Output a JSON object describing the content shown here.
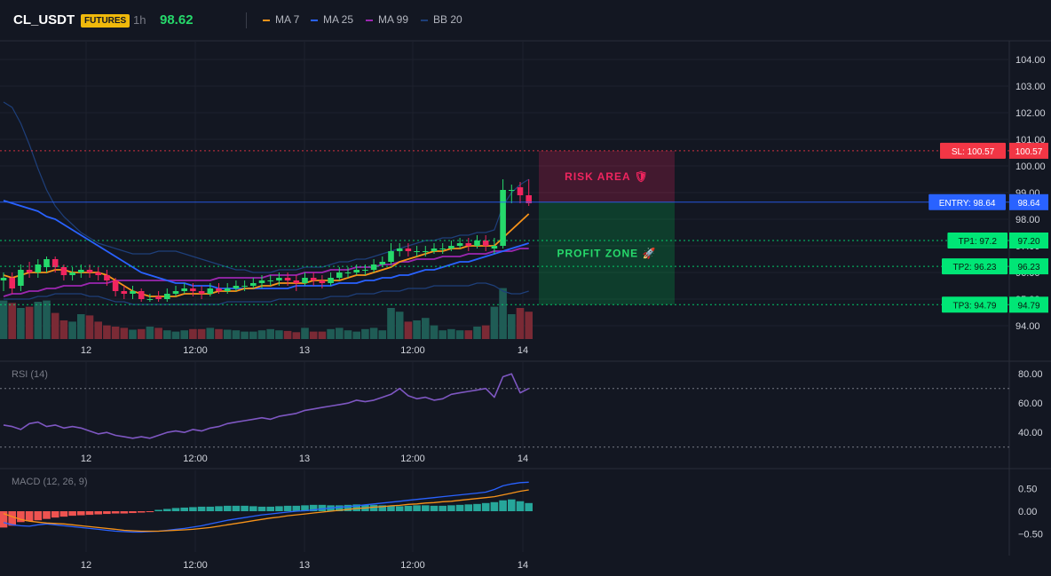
{
  "header": {
    "symbol": "CL_USDT",
    "badge": "FUTURES",
    "timeframe": "1h",
    "last_price": "98.62",
    "legend": [
      {
        "label": "MA 7",
        "color": "#f7931a"
      },
      {
        "label": "MA 25",
        "color": "#2962ff"
      },
      {
        "label": "MA 99",
        "color": "#9c27b0"
      },
      {
        "label": "BB 20",
        "color": "#1e3f7a"
      }
    ]
  },
  "colors": {
    "up": "#26a69a",
    "up_bright": "#26d96b",
    "down": "#ef5350",
    "down_bright": "#f0255f",
    "vol_up": "#1f5c55",
    "vol_down": "#7a2a35",
    "rsi": "#7e57c2",
    "macd": "#2962ff",
    "signal": "#f7931a",
    "hist_up": "#26a69a",
    "hist_down": "#ef5350"
  },
  "chart_data": [
    {
      "type": "candlestick",
      "title": "CL_USDT",
      "ylim": [
        93.5,
        104.7
      ],
      "y_ticks": [
        "104.00",
        "103.00",
        "102.00",
        "101.00",
        "100.00",
        "99.00",
        "98.00",
        "97.00",
        "96.00",
        "95.00",
        "94.00"
      ],
      "x_ticks": [
        "12",
        "12:00",
        "13",
        "12:00",
        "14"
      ],
      "close": [
        95.8,
        95.4,
        96.1,
        96.0,
        96.3,
        96.5,
        96.2,
        95.9,
        96.0,
        96.1,
        96.0,
        95.9,
        95.7,
        95.3,
        95.2,
        95.3,
        95.0,
        95.0,
        95.0,
        95.2,
        95.3,
        95.4,
        95.3,
        95.2,
        95.4,
        95.3,
        95.4,
        95.5,
        95.5,
        95.6,
        95.7,
        95.7,
        95.8,
        95.7,
        95.6,
        95.8,
        95.7,
        95.6,
        95.8,
        96.0,
        96.0,
        96.1,
        96.1,
        96.3,
        96.4,
        96.8,
        96.9,
        96.8,
        96.8,
        96.8,
        96.9,
        96.9,
        97.0,
        97.1,
        97.0,
        97.2,
        97.0,
        97.0,
        99.1,
        99.1,
        98.9,
        98.6
      ],
      "open": [
        95.7,
        95.8,
        95.5,
        96.1,
        96.0,
        96.2,
        96.5,
        96.2,
        95.9,
        96.0,
        96.1,
        96.0,
        95.9,
        95.7,
        95.3,
        95.2,
        95.3,
        95.0,
        95.1,
        95.0,
        95.2,
        95.3,
        95.4,
        95.3,
        95.2,
        95.4,
        95.3,
        95.4,
        95.5,
        95.5,
        95.6,
        95.7,
        95.7,
        95.8,
        95.7,
        95.6,
        95.8,
        95.7,
        95.6,
        95.8,
        96.0,
        96.0,
        96.1,
        96.1,
        96.3,
        96.4,
        96.8,
        96.9,
        96.8,
        96.8,
        96.8,
        96.9,
        96.9,
        97.0,
        97.1,
        97.0,
        97.2,
        96.9,
        97.0,
        99.1,
        99.2,
        98.9
      ],
      "high": [
        96.0,
        96.0,
        96.3,
        96.4,
        96.5,
        96.6,
        96.6,
        96.3,
        96.2,
        96.3,
        96.3,
        96.2,
        96.1,
        95.8,
        95.5,
        95.5,
        95.4,
        95.2,
        95.3,
        95.4,
        95.5,
        95.6,
        95.6,
        95.5,
        95.6,
        95.6,
        95.6,
        95.7,
        95.7,
        95.8,
        95.9,
        95.9,
        96.0,
        96.0,
        95.9,
        96.0,
        96.0,
        95.9,
        96.0,
        96.2,
        96.2,
        96.3,
        96.3,
        96.5,
        96.6,
        97.1,
        97.1,
        97.1,
        97.0,
        97.0,
        97.1,
        97.1,
        97.2,
        97.3,
        97.3,
        97.4,
        97.4,
        97.3,
        99.5,
        99.3,
        99.4,
        99.5
      ],
      "low": [
        95.3,
        95.2,
        95.3,
        95.8,
        95.8,
        96.0,
        96.0,
        95.7,
        95.7,
        95.8,
        95.8,
        95.7,
        95.5,
        95.1,
        95.0,
        95.0,
        94.9,
        94.9,
        94.9,
        94.9,
        95.1,
        95.2,
        95.1,
        95.0,
        95.1,
        95.2,
        95.2,
        95.3,
        95.3,
        95.4,
        95.4,
        95.5,
        95.5,
        95.5,
        95.3,
        95.5,
        95.5,
        95.4,
        95.5,
        95.7,
        95.8,
        95.9,
        95.9,
        96.0,
        96.2,
        96.3,
        96.6,
        96.6,
        96.6,
        96.6,
        96.7,
        96.7,
        96.8,
        96.9,
        96.8,
        96.9,
        96.8,
        96.7,
        96.9,
        98.6,
        98.6,
        98.5
      ],
      "ma7": [
        95.9,
        95.8,
        95.9,
        96.0,
        96.0,
        96.0,
        96.1,
        96.1,
        96.0,
        96.0,
        96.0,
        96.0,
        95.9,
        95.7,
        95.5,
        95.3,
        95.2,
        95.1,
        95.1,
        95.1,
        95.1,
        95.2,
        95.2,
        95.2,
        95.2,
        95.3,
        95.3,
        95.3,
        95.4,
        95.4,
        95.5,
        95.5,
        95.6,
        95.6,
        95.6,
        95.6,
        95.7,
        95.7,
        95.7,
        95.7,
        95.8,
        95.9,
        95.9,
        96.0,
        96.1,
        96.2,
        96.4,
        96.5,
        96.6,
        96.7,
        96.8,
        96.8,
        96.9,
        96.9,
        97.0,
        97.0,
        97.0,
        97.0,
        97.3,
        97.6,
        97.9,
        98.2
      ],
      "ma25": [
        98.7,
        98.6,
        98.5,
        98.4,
        98.3,
        98.1,
        98.0,
        97.8,
        97.6,
        97.4,
        97.2,
        97.0,
        96.8,
        96.6,
        96.4,
        96.2,
        96.0,
        95.9,
        95.8,
        95.7,
        95.6,
        95.6,
        95.5,
        95.5,
        95.5,
        95.4,
        95.4,
        95.4,
        95.4,
        95.4,
        95.4,
        95.4,
        95.4,
        95.4,
        95.5,
        95.5,
        95.5,
        95.5,
        95.5,
        95.6,
        95.6,
        95.6,
        95.7,
        95.7,
        95.8,
        95.8,
        95.9,
        95.9,
        96.0,
        96.1,
        96.1,
        96.2,
        96.3,
        96.4,
        96.4,
        96.5,
        96.6,
        96.7,
        96.8,
        96.9,
        97.0,
        97.1
      ],
      "ma99": [
        95.1,
        95.2,
        95.2,
        95.3,
        95.3,
        95.4,
        95.4,
        95.5,
        95.5,
        95.5,
        95.6,
        95.6,
        95.6,
        95.7,
        95.7,
        95.7,
        95.7,
        95.7,
        95.7,
        95.7,
        95.7,
        95.7,
        95.7,
        95.7,
        95.7,
        95.8,
        95.8,
        95.8,
        95.8,
        95.8,
        95.8,
        95.9,
        95.9,
        95.9,
        95.9,
        96.0,
        96.0,
        96.0,
        96.1,
        96.1,
        96.1,
        96.2,
        96.2,
        96.2,
        96.3,
        96.3,
        96.4,
        96.4,
        96.5,
        96.5,
        96.5,
        96.6,
        96.6,
        96.6,
        96.7,
        96.7,
        96.7,
        96.8,
        96.8,
        96.8,
        96.9,
        96.9
      ],
      "bb_upper": [
        102.4,
        102.2,
        101.6,
        100.8,
        99.9,
        99.1,
        98.5,
        98.1,
        97.8,
        97.5,
        97.3,
        97.1,
        97.0,
        96.9,
        96.8,
        96.7,
        96.7,
        96.7,
        96.8,
        96.8,
        96.8,
        96.7,
        96.6,
        96.5,
        96.4,
        96.3,
        96.2,
        96.1,
        96.1,
        96.0,
        96.0,
        96.0,
        96.1,
        96.1,
        96.1,
        96.2,
        96.2,
        96.2,
        96.3,
        96.4,
        96.4,
        96.5,
        96.5,
        96.6,
        96.7,
        96.8,
        96.9,
        97.0,
        97.1,
        97.2,
        97.2,
        97.3,
        97.3,
        97.4,
        97.4,
        97.5,
        97.5,
        97.6,
        98.5,
        99.0,
        99.3,
        99.5
      ],
      "bb_lower": [
        95.0,
        95.0,
        95.0,
        95.0,
        95.1,
        95.1,
        95.2,
        95.2,
        95.2,
        95.2,
        95.1,
        95.1,
        95.0,
        94.9,
        94.9,
        94.8,
        94.8,
        94.8,
        94.8,
        94.8,
        94.8,
        94.8,
        94.8,
        94.8,
        94.8,
        94.8,
        94.9,
        94.9,
        94.9,
        94.9,
        94.9,
        94.9,
        95.0,
        95.0,
        95.0,
        95.0,
        95.0,
        95.0,
        95.1,
        95.1,
        95.1,
        95.2,
        95.2,
        95.2,
        95.3,
        95.3,
        95.3,
        95.4,
        95.4,
        95.4,
        95.5,
        95.5,
        95.5,
        95.5,
        95.5,
        95.6,
        95.6,
        95.5,
        95.3,
        95.2,
        95.2,
        95.3
      ],
      "volume": [
        62,
        58,
        50,
        52,
        60,
        62,
        42,
        30,
        28,
        40,
        38,
        28,
        22,
        20,
        18,
        15,
        16,
        20,
        18,
        14,
        12,
        14,
        16,
        16,
        18,
        16,
        15,
        14,
        12,
        12,
        14,
        16,
        14,
        13,
        11,
        18,
        12,
        12,
        16,
        18,
        14,
        12,
        16,
        18,
        14,
        50,
        44,
        28,
        30,
        34,
        22,
        14,
        16,
        14,
        14,
        20,
        22,
        52,
        82,
        40,
        50,
        44
      ],
      "levels": [
        {
          "name": "sl",
          "value": 100.57,
          "label": "SL: 100.57",
          "tag": "100.57",
          "color": "#f23645"
        },
        {
          "name": "entry",
          "value": 98.64,
          "label": "ENTRY: 98.64",
          "tag": "98.64",
          "color": "#2962ff"
        },
        {
          "name": "tp1",
          "value": 97.2,
          "label": "TP1: 97.2",
          "tag": "97.20",
          "color": "#00e676"
        },
        {
          "name": "tp2",
          "value": 96.23,
          "label": "TP2: 96.23",
          "tag": "96.23",
          "color": "#00e676"
        },
        {
          "name": "tp3",
          "value": 94.79,
          "label": "TP3: 94.79",
          "tag": "94.79",
          "color": "#00e676"
        }
      ],
      "zones": {
        "risk_label": "RISK AREA 🛡",
        "profit_label": "PROFIT ZONE 🚀"
      }
    },
    {
      "type": "line",
      "title": "RSI (14)",
      "ylim": [
        28,
        88
      ],
      "y_ticks": [
        "80.00",
        "60.00",
        "40.00"
      ],
      "bands": [
        70,
        30
      ],
      "x_ticks": [
        "12",
        "12:00",
        "13",
        "12:00",
        "14"
      ],
      "values": [
        45,
        44,
        42,
        46,
        47,
        44,
        45,
        43,
        44,
        43,
        41,
        39,
        40,
        38,
        37,
        36,
        37,
        36,
        38,
        40,
        41,
        40,
        42,
        41,
        43,
        44,
        46,
        47,
        48,
        49,
        50,
        49,
        51,
        52,
        53,
        55,
        56,
        57,
        58,
        59,
        60,
        62,
        61,
        62,
        64,
        66,
        70,
        65,
        63,
        64,
        62,
        63,
        66,
        67,
        68,
        69,
        70,
        64,
        78,
        80,
        67,
        70
      ]
    },
    {
      "type": "bar",
      "title": "MACD (12, 26, 9)",
      "ylim": [
        -0.9,
        0.9
      ],
      "y_ticks": [
        "0.50",
        "0.00",
        "−0.50"
      ],
      "x_ticks": [
        "12",
        "12:00",
        "13",
        "12:00",
        "14"
      ],
      "histogram": [
        -0.36,
        -0.32,
        -0.24,
        -0.22,
        -0.2,
        -0.17,
        -0.14,
        -0.12,
        -0.1,
        -0.09,
        -0.08,
        -0.07,
        -0.06,
        -0.05,
        -0.05,
        -0.04,
        -0.03,
        -0.02,
        0.03,
        0.05,
        0.07,
        0.08,
        0.09,
        0.1,
        0.1,
        0.11,
        0.12,
        0.12,
        0.12,
        0.11,
        0.1,
        0.1,
        0.11,
        0.12,
        0.12,
        0.13,
        0.14,
        0.14,
        0.13,
        0.13,
        0.14,
        0.15,
        0.14,
        0.14,
        0.13,
        0.12,
        0.11,
        0.12,
        0.13,
        0.13,
        0.12,
        0.12,
        0.13,
        0.14,
        0.15,
        0.16,
        0.18,
        0.2,
        0.24,
        0.26,
        0.22,
        0.18
      ],
      "macd": [
        -0.25,
        -0.3,
        -0.32,
        -0.33,
        -0.3,
        -0.28,
        -0.3,
        -0.32,
        -0.34,
        -0.36,
        -0.38,
        -0.4,
        -0.42,
        -0.44,
        -0.45,
        -0.46,
        -0.46,
        -0.45,
        -0.44,
        -0.42,
        -0.4,
        -0.38,
        -0.35,
        -0.32,
        -0.28,
        -0.24,
        -0.2,
        -0.17,
        -0.14,
        -0.11,
        -0.08,
        -0.06,
        -0.04,
        -0.02,
        0.0,
        0.01,
        0.03,
        0.05,
        0.07,
        0.09,
        0.1,
        0.12,
        0.14,
        0.16,
        0.18,
        0.2,
        0.22,
        0.24,
        0.26,
        0.28,
        0.3,
        0.32,
        0.34,
        0.36,
        0.38,
        0.4,
        0.42,
        0.48,
        0.56,
        0.6,
        0.63,
        0.64
      ],
      "signal": [
        -0.05,
        -0.12,
        -0.18,
        -0.22,
        -0.24,
        -0.26,
        -0.27,
        -0.28,
        -0.3,
        -0.32,
        -0.34,
        -0.36,
        -0.38,
        -0.4,
        -0.42,
        -0.43,
        -0.44,
        -0.44,
        -0.44,
        -0.43,
        -0.42,
        -0.41,
        -0.4,
        -0.38,
        -0.36,
        -0.33,
        -0.3,
        -0.27,
        -0.24,
        -0.21,
        -0.18,
        -0.15,
        -0.13,
        -0.1,
        -0.08,
        -0.06,
        -0.04,
        -0.02,
        0.0,
        0.02,
        0.04,
        0.06,
        0.07,
        0.09,
        0.1,
        0.12,
        0.13,
        0.15,
        0.16,
        0.18,
        0.19,
        0.21,
        0.22,
        0.24,
        0.26,
        0.28,
        0.3,
        0.32,
        0.36,
        0.4,
        0.44,
        0.47
      ]
    }
  ]
}
